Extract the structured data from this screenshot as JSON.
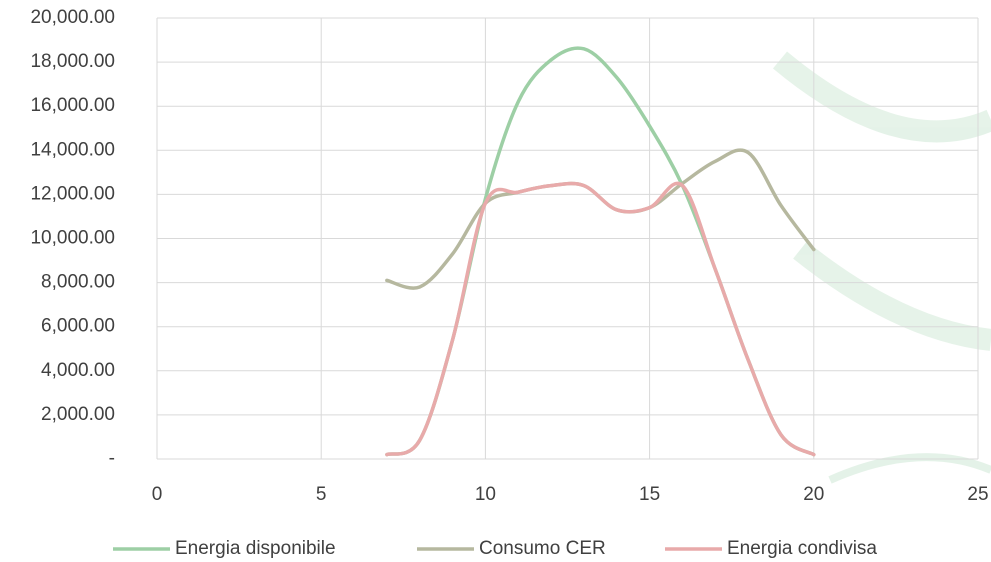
{
  "chart_data": {
    "type": "line",
    "x": [
      7,
      8,
      9,
      10,
      11,
      12,
      13,
      14,
      15,
      16,
      17,
      18,
      19,
      20
    ],
    "series": [
      {
        "name": "Energia disponibile",
        "color": "#9dcfa5",
        "values": [
          200,
          850,
          5400,
          11800,
          16200,
          18100,
          18600,
          17300,
          15100,
          12400,
          8600,
          4500,
          1100,
          200
        ]
      },
      {
        "name": "Consumo CER",
        "color": "#b6b89f",
        "values": [
          8100,
          7800,
          9300,
          11600,
          12100,
          12400,
          12400,
          11300,
          11400,
          12500,
          13500,
          13900,
          11500,
          9500
        ]
      },
      {
        "name": "Energia condivisa",
        "color": "#e8aaaa",
        "values": [
          200,
          850,
          5400,
          11600,
          12100,
          12400,
          12400,
          11300,
          11400,
          12400,
          8600,
          4500,
          1100,
          200
        ]
      }
    ],
    "xlim": [
      0,
      25
    ],
    "xticks": [
      0,
      5,
      10,
      15,
      20,
      25
    ],
    "ylim": [
      0,
      20000
    ],
    "yticks": [
      {
        "value": 0,
        "label": "-"
      },
      {
        "value": 2000,
        "label": "2,000.00"
      },
      {
        "value": 4000,
        "label": "4,000.00"
      },
      {
        "value": 6000,
        "label": "6,000.00"
      },
      {
        "value": 8000,
        "label": "8,000.00"
      },
      {
        "value": 10000,
        "label": "10,000.00"
      },
      {
        "value": 12000,
        "label": "12,000.00"
      },
      {
        "value": 14000,
        "label": "14,000.00"
      },
      {
        "value": 16000,
        "label": "16,000.00"
      },
      {
        "value": 18000,
        "label": "18,000.00"
      },
      {
        "value": 20000,
        "label": "20,000.00"
      }
    ],
    "grid": true,
    "smooth": true,
    "legend": "bottom"
  }
}
